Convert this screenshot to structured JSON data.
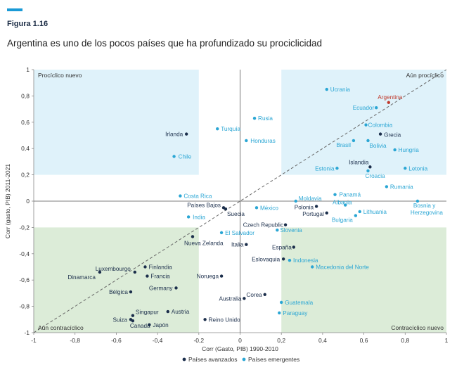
{
  "figure_label": "Figura 1.16",
  "title": "Argentina es uno de los pocos países que ha profundizado su prociclicidad",
  "colors": {
    "advanced": "#1b2e4b",
    "emerging": "#2aa6d4",
    "highlight": "#c0392b",
    "quadrant_blue": "#dff2fa",
    "quadrant_green": "#dcecd8",
    "accent": "#1a9ad6"
  },
  "chart_data": {
    "type": "scatter",
    "xlabel": "Corr (Gasto, PIB) 1990-2010",
    "ylabel": "Corr (gasto, PIB) 2011-2021",
    "xlim": [
      -1,
      1
    ],
    "ylim": [
      -1,
      1
    ],
    "x_ticks": [
      "-1",
      "-0,8",
      "-0,6",
      "-0,4",
      "-0,2",
      "0",
      "0,2",
      "0,4",
      "0,6",
      "0,8",
      "1"
    ],
    "y_ticks": [
      "1",
      "0,8",
      "0,6",
      "0,4",
      "0,2",
      "0",
      "-0,2",
      "-0,4",
      "-0,6",
      "-0,8",
      "-1"
    ],
    "quadrant_labels": {
      "top_left": "Procíclico nuevo",
      "top_right": "Aún procíclico",
      "bottom_left": "Aún contracíclico",
      "bottom_right": "Contracíclico nuevo"
    },
    "legend": {
      "placement": "bottom-center",
      "advanced": "Países avanzados",
      "emerging": "Países emergentes"
    },
    "points": [
      {
        "name": "Ucrania",
        "x": 0.42,
        "y": 0.85,
        "group": "emerging"
      },
      {
        "name": "Argentina",
        "x": 0.72,
        "y": 0.75,
        "group": "highlight"
      },
      {
        "name": "Ecuador",
        "x": 0.66,
        "y": 0.71,
        "group": "emerging"
      },
      {
        "name": "Rusia",
        "x": 0.07,
        "y": 0.63,
        "group": "emerging"
      },
      {
        "name": "Colombia",
        "x": 0.61,
        "y": 0.58,
        "group": "emerging"
      },
      {
        "name": "Turquía",
        "x": -0.11,
        "y": 0.55,
        "group": "emerging"
      },
      {
        "name": "Grecia",
        "x": 0.68,
        "y": 0.51,
        "group": "advanced"
      },
      {
        "name": "Irlanda",
        "x": -0.26,
        "y": 0.51,
        "group": "advanced"
      },
      {
        "name": "Honduras",
        "x": 0.03,
        "y": 0.46,
        "group": "emerging"
      },
      {
        "name": "Brasil",
        "x": 0.55,
        "y": 0.46,
        "group": "emerging"
      },
      {
        "name": "Bolivia",
        "x": 0.62,
        "y": 0.46,
        "group": "emerging"
      },
      {
        "name": "Hungría",
        "x": 0.75,
        "y": 0.39,
        "group": "emerging"
      },
      {
        "name": "Chile",
        "x": -0.32,
        "y": 0.34,
        "group": "emerging"
      },
      {
        "name": "Islandia",
        "x": 0.63,
        "y": 0.26,
        "group": "advanced"
      },
      {
        "name": "Estonia",
        "x": 0.47,
        "y": 0.25,
        "group": "emerging"
      },
      {
        "name": "Letonia",
        "x": 0.8,
        "y": 0.25,
        "group": "emerging"
      },
      {
        "name": "Croacia",
        "x": 0.62,
        "y": 0.23,
        "group": "emerging"
      },
      {
        "name": "Rumania",
        "x": 0.71,
        "y": 0.11,
        "group": "emerging"
      },
      {
        "name": "Costa Rica",
        "x": -0.29,
        "y": 0.04,
        "group": "emerging"
      },
      {
        "name": "Panamá",
        "x": 0.46,
        "y": 0.05,
        "group": "emerging"
      },
      {
        "name": "Moldavia",
        "x": 0.27,
        "y": 0.0,
        "group": "emerging"
      },
      {
        "name": "Bosnia y Herzegovina",
        "x": 0.86,
        "y": 0.0,
        "group": "emerging"
      },
      {
        "name": "Albania",
        "x": 0.51,
        "y": -0.03,
        "group": "emerging"
      },
      {
        "name": "Polonia",
        "x": 0.37,
        "y": -0.04,
        "group": "advanced"
      },
      {
        "name": "Países Bajos",
        "x": -0.08,
        "y": -0.05,
        "group": "advanced"
      },
      {
        "name": "México",
        "x": 0.08,
        "y": -0.05,
        "group": "emerging"
      },
      {
        "name": "Suecia",
        "x": -0.07,
        "y": -0.06,
        "group": "advanced"
      },
      {
        "name": "Lithuania",
        "x": 0.58,
        "y": -0.08,
        "group": "emerging"
      },
      {
        "name": "Portugal",
        "x": 0.42,
        "y": -0.09,
        "group": "advanced"
      },
      {
        "name": "India",
        "x": -0.25,
        "y": -0.12,
        "group": "emerging"
      },
      {
        "name": "Bulgaria",
        "x": 0.56,
        "y": -0.11,
        "group": "emerging"
      },
      {
        "name": "Czech Republic",
        "x": 0.22,
        "y": -0.18,
        "group": "advanced"
      },
      {
        "name": "Slovenia",
        "x": 0.18,
        "y": -0.22,
        "group": "emerging"
      },
      {
        "name": "El Salvador",
        "x": -0.09,
        "y": -0.24,
        "group": "emerging"
      },
      {
        "name": "Nueva Zelanda",
        "x": -0.23,
        "y": -0.27,
        "group": "advanced"
      },
      {
        "name": "Italia",
        "x": 0.03,
        "y": -0.33,
        "group": "advanced"
      },
      {
        "name": "España",
        "x": 0.26,
        "y": -0.35,
        "group": "advanced"
      },
      {
        "name": "Eslovaquia",
        "x": 0.21,
        "y": -0.44,
        "group": "advanced"
      },
      {
        "name": "Indonesia",
        "x": 0.24,
        "y": -0.45,
        "group": "emerging"
      },
      {
        "name": "Luxembourgo",
        "x": -0.51,
        "y": -0.54,
        "group": "advanced"
      },
      {
        "name": "Finlandia",
        "x": -0.46,
        "y": -0.5,
        "group": "advanced"
      },
      {
        "name": "Macedonia del Norte",
        "x": 0.35,
        "y": -0.5,
        "group": "emerging"
      },
      {
        "name": "Dinamarca",
        "x": -0.68,
        "y": -0.54,
        "group": "advanced"
      },
      {
        "name": "Francia",
        "x": -0.45,
        "y": -0.57,
        "group": "advanced"
      },
      {
        "name": "Noruega",
        "x": -0.09,
        "y": -0.57,
        "group": "advanced"
      },
      {
        "name": "Germany",
        "x": -0.31,
        "y": -0.66,
        "group": "advanced"
      },
      {
        "name": "Bélgica",
        "x": -0.53,
        "y": -0.69,
        "group": "advanced"
      },
      {
        "name": "Corea",
        "x": 0.12,
        "y": -0.71,
        "group": "advanced"
      },
      {
        "name": "Australia",
        "x": 0.02,
        "y": -0.74,
        "group": "advanced"
      },
      {
        "name": "Guatemala",
        "x": 0.2,
        "y": -0.77,
        "group": "emerging"
      },
      {
        "name": "Austria",
        "x": -0.35,
        "y": -0.84,
        "group": "advanced"
      },
      {
        "name": "Paraguay",
        "x": 0.19,
        "y": -0.85,
        "group": "emerging"
      },
      {
        "name": "Singapur",
        "x": -0.52,
        "y": -0.87,
        "group": "advanced"
      },
      {
        "name": "Suiza",
        "x": -0.53,
        "y": -0.9,
        "group": "advanced"
      },
      {
        "name": "Reino Unido",
        "x": -0.17,
        "y": -0.9,
        "group": "advanced"
      },
      {
        "name": "Canadá",
        "x": -0.52,
        "y": -0.91,
        "group": "advanced"
      },
      {
        "name": "Japón",
        "x": -0.44,
        "y": -0.94,
        "group": "advanced"
      }
    ]
  }
}
